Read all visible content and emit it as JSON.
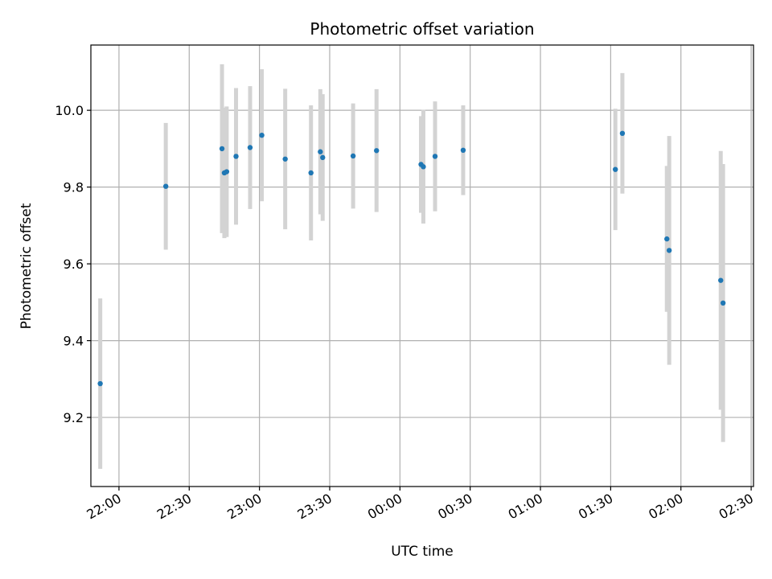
{
  "chart_data": {
    "type": "scatter",
    "title": "Photometric offset variation",
    "xlabel": "UTC time",
    "ylabel": "Photometric offset",
    "x_ticks": [
      "22:00",
      "22:30",
      "23:00",
      "23:30",
      "00:00",
      "00:30",
      "01:00",
      "01:30",
      "02:00",
      "02:30"
    ],
    "y_ticks": [
      "9.2",
      "9.4",
      "9.6",
      "9.8",
      "10.0"
    ],
    "xlim": [
      "21:48",
      "02:31"
    ],
    "ylim": [
      9.02,
      10.17
    ],
    "grid": true,
    "point_color": "#1f77b4",
    "errorbar_color": "#d3d3d3",
    "points": [
      {
        "t": "21:52",
        "y": 9.288,
        "err": 0.222
      },
      {
        "t": "22:20",
        "y": 9.802,
        "err": 0.165
      },
      {
        "t": "22:44",
        "y": 9.9,
        "err": 0.22
      },
      {
        "t": "22:45",
        "y": 9.837,
        "err": 0.17
      },
      {
        "t": "22:46",
        "y": 9.84,
        "err": 0.17
      },
      {
        "t": "22:50",
        "y": 9.88,
        "err": 0.178
      },
      {
        "t": "22:56",
        "y": 9.903,
        "err": 0.16
      },
      {
        "t": "23:01",
        "y": 9.935,
        "err": 0.172
      },
      {
        "t": "23:11",
        "y": 9.873,
        "err": 0.183
      },
      {
        "t": "23:22",
        "y": 9.837,
        "err": 0.176
      },
      {
        "t": "23:26",
        "y": 9.892,
        "err": 0.163
      },
      {
        "t": "23:27",
        "y": 9.877,
        "err": 0.165
      },
      {
        "t": "23:40",
        "y": 9.881,
        "err": 0.137
      },
      {
        "t": "23:50",
        "y": 9.895,
        "err": 0.16
      },
      {
        "t": "00:09",
        "y": 9.859,
        "err": 0.126
      },
      {
        "t": "00:10",
        "y": 9.853,
        "err": 0.148
      },
      {
        "t": "00:15",
        "y": 9.88,
        "err": 0.143
      },
      {
        "t": "00:27",
        "y": 9.896,
        "err": 0.117
      },
      {
        "t": "01:32",
        "y": 9.846,
        "err": 0.158
      },
      {
        "t": "01:35",
        "y": 9.94,
        "err": 0.157
      },
      {
        "t": "01:54",
        "y": 9.665,
        "err": 0.19
      },
      {
        "t": "01:55",
        "y": 9.635,
        "err": 0.298
      },
      {
        "t": "02:17",
        "y": 9.557,
        "err": 0.337
      },
      {
        "t": "02:18",
        "y": 9.498,
        "err": 0.362
      }
    ]
  }
}
